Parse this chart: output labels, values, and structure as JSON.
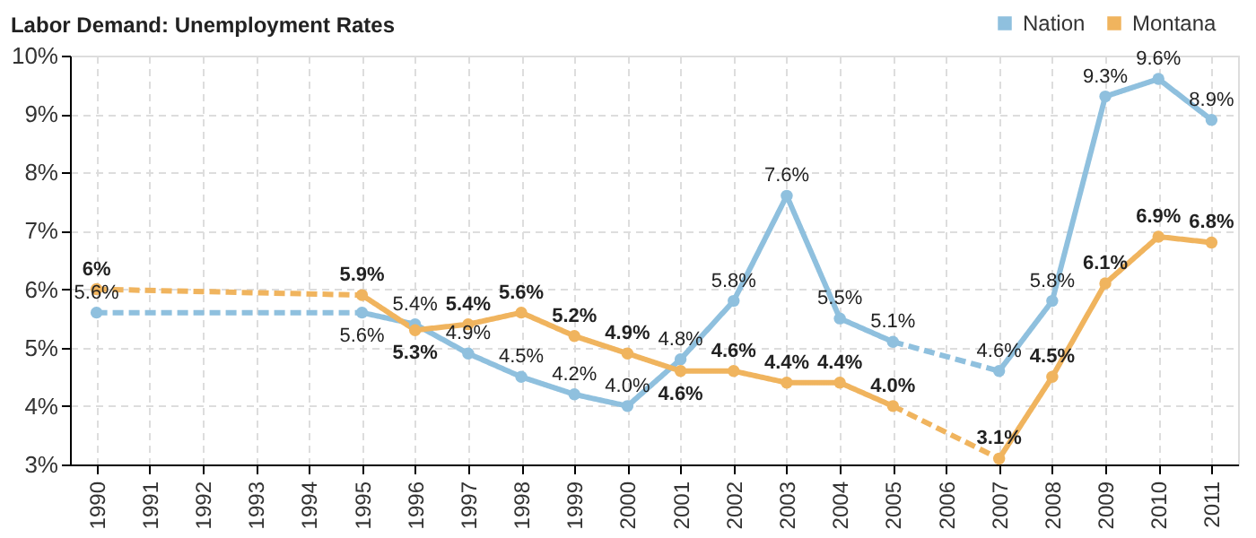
{
  "chart_data": {
    "type": "line",
    "title": "Labor Demand: Unemployment Rates",
    "categories": [
      "1990",
      "1991",
      "1992",
      "1993",
      "1994",
      "1995",
      "1996",
      "1997",
      "1998",
      "1999",
      "2000",
      "2001",
      "2002",
      "2003",
      "2004",
      "2005",
      "2006",
      "2007",
      "2008",
      "2009",
      "2010",
      "2011"
    ],
    "series": [
      {
        "name": "Nation",
        "color": "#8fc0de",
        "line_style": "dashed",
        "values": [
          5.6,
          null,
          null,
          null,
          null,
          5.6,
          5.4,
          4.9,
          4.5,
          4.2,
          4.0,
          4.8,
          5.8,
          7.6,
          5.5,
          5.1,
          null,
          4.6,
          5.8,
          9.3,
          9.6,
          8.9
        ],
        "value_labels": [
          "5.6%",
          null,
          null,
          null,
          null,
          "5.6%",
          "5.4%",
          "4.9%",
          "4.5%",
          "4.2%",
          "4.0%",
          "4.8%",
          "5.8%",
          "7.6%",
          "5.5%",
          "5.1%",
          null,
          "4.6%",
          "5.8%",
          "9.3%",
          "9.6%",
          "8.9%"
        ]
      },
      {
        "name": "Montana",
        "color": "#f0b45e",
        "line_style": "dashed",
        "values": [
          6,
          null,
          null,
          null,
          null,
          5.9,
          5.3,
          5.4,
          5.6,
          5.2,
          4.9,
          4.6,
          4.6,
          4.4,
          4.4,
          4.0,
          null,
          3.1,
          4.5,
          6.1,
          6.9,
          6.8
        ],
        "value_labels": [
          "6%",
          null,
          null,
          null,
          null,
          "5.9%",
          "5.3%",
          "5.4%",
          "5.6%",
          "5.2%",
          "4.9%",
          "4.6%",
          "4.6%",
          "4.4%",
          "4.4%",
          "4.0%",
          null,
          "3.1%",
          "4.5%",
          "6.1%",
          "6.9%",
          "6.8%"
        ]
      }
    ],
    "ylim": [
      3,
      10
    ],
    "yticks": [
      {
        "value": 3,
        "label": "3%"
      },
      {
        "value": 4,
        "label": "4%"
      },
      {
        "value": 5,
        "label": "5%"
      },
      {
        "value": 6,
        "label": "6%"
      },
      {
        "value": 7,
        "label": "7%"
      },
      {
        "value": 8,
        "label": "8%"
      },
      {
        "value": 9,
        "label": "9%"
      },
      {
        "value": 10,
        "label": "10%"
      }
    ],
    "grid": true,
    "legend": "top right",
    "marker": "circle"
  }
}
